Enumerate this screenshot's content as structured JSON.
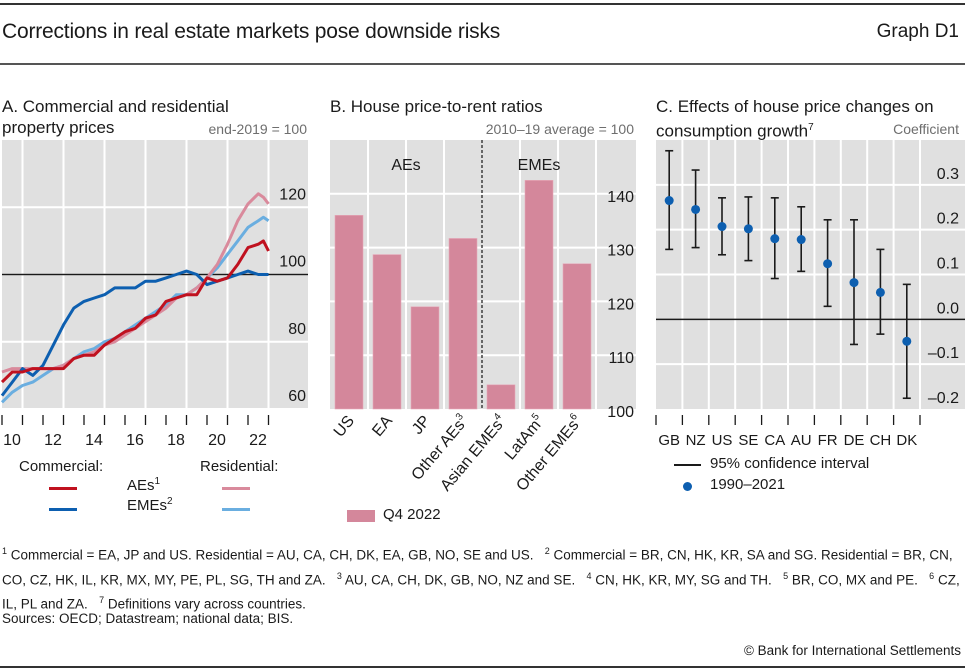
{
  "header": {
    "title": "Corrections in real estate markets pose downside risks",
    "graph_id": "Graph D1"
  },
  "colors": {
    "commercial_aes": "#c0111f",
    "commercial_emes": "#0d5fb0",
    "residential_aes": "#d98a9c",
    "residential_emes": "#6aaee0",
    "bar": "#d4879b",
    "dot": "#0d5fb0",
    "plot_bg": "#e0e0e0"
  },
  "panels": {
    "a": {
      "title_line1": "A. Commercial and residential",
      "title_line2": "property prices",
      "unit": "end-2019 = 100"
    },
    "b": {
      "title_line1": "B. House price-to-rent ratios",
      "unit": "2010–19 average = 100"
    },
    "c": {
      "title_line1": "C. Effects of house price changes on",
      "title_line2": "consumption growth",
      "title_sup": "7",
      "unit": "Coefficient"
    }
  },
  "legend_a": {
    "commercial": "Commercial:",
    "residential": "Residential:",
    "aes": "AEs",
    "aes_sup": "1",
    "emes": "EMEs",
    "emes_sup": "2"
  },
  "legend_b": {
    "q4": "Q4 2022"
  },
  "legend_c": {
    "ci": "95% confidence interval",
    "point": "1990–2021"
  },
  "footnotes": {
    "n1": "Commercial = EA, JP and US. Residential = AU, CA, CH, DK, EA, GB, NO, SE and US.",
    "n2": "Commercial = BR, CN, HK, KR, SA and SG. Residential = BR, CN, CO, CZ, HK, IL, KR, MX, MY, PE, PL, SG, TH and ZA.",
    "n3": "AU, CA, CH, DK, GB, NO, NZ and SE.",
    "n4": "CN, HK, KR, MY, SG and TH.",
    "n5": "BR, CO, MX and PE.",
    "n6": "CZ, IL, PL and ZA.",
    "n7": "Definitions vary across countries."
  },
  "sources": "Sources: OECD; Datastream; national data; BIS.",
  "copyright": "© Bank for International Settlements",
  "chart_data": [
    {
      "type": "line",
      "title": "A. Commercial and residential property prices",
      "ylabel": "end-2019 = 100",
      "ylim": [
        60,
        140
      ],
      "yticks": [
        60,
        80,
        100,
        120
      ],
      "xlim": [
        2010,
        2024
      ],
      "xtick_labels": [
        "10",
        "12",
        "14",
        "16",
        "18",
        "20",
        "22"
      ],
      "reference_line": 100,
      "x": [
        2010.0,
        2010.5,
        2011.0,
        2011.5,
        2012.0,
        2012.5,
        2013.0,
        2013.5,
        2014.0,
        2014.5,
        2015.0,
        2015.5,
        2016.0,
        2016.5,
        2017.0,
        2017.5,
        2018.0,
        2018.5,
        2019.0,
        2019.5,
        2020.0,
        2020.5,
        2021.0,
        2021.5,
        2022.0,
        2022.5,
        2022.75,
        2023.0
      ],
      "series": [
        {
          "name": "Commercial AEs",
          "values": [
            68,
            71,
            71,
            72,
            72,
            72,
            72,
            75,
            76,
            76,
            79,
            81,
            83,
            84,
            87,
            88,
            92,
            93,
            94,
            94,
            99,
            98,
            99,
            103,
            108,
            109,
            110,
            107
          ]
        },
        {
          "name": "Commercial EMEs",
          "values": [
            64,
            68,
            72,
            70,
            73,
            79,
            85,
            90,
            92,
            93,
            94,
            96,
            96,
            96,
            98,
            98,
            99,
            100,
            101,
            100,
            97,
            98,
            99,
            100,
            101,
            100,
            100,
            100
          ]
        },
        {
          "name": "Residential AEs",
          "values": [
            71,
            72,
            72,
            72,
            72,
            72,
            73,
            75,
            76,
            77,
            79,
            80,
            82,
            84,
            86,
            88,
            90,
            93,
            94,
            96,
            99,
            103,
            109,
            116,
            121,
            124,
            123,
            121
          ]
        },
        {
          "name": "Residential EMEs",
          "values": [
            62,
            65,
            67,
            68,
            70,
            72,
            73,
            75,
            77,
            78,
            80,
            81,
            83,
            85,
            87,
            89,
            91,
            94,
            94,
            96,
            99,
            102,
            106,
            110,
            114,
            116,
            117,
            116
          ]
        }
      ],
      "legend": [
        "Commercial: AEs",
        "Commercial: EMEs",
        "Residential: AEs",
        "Residential: EMEs"
      ]
    },
    {
      "type": "bar",
      "title": "B. House price-to-rent ratios",
      "ylabel": "2010–19 average = 100",
      "ylim": [
        100,
        150
      ],
      "yticks": [
        100,
        110,
        120,
        130,
        140
      ],
      "categories": [
        "US",
        "EA",
        "JP",
        "Other AEs",
        "Asian EMEs",
        "LatAm",
        "Other EMEs"
      ],
      "category_sups": [
        "",
        "",
        "",
        "3",
        "4",
        "5",
        "6"
      ],
      "groups": [
        {
          "label": "AEs",
          "count": 4
        },
        {
          "label": "EMEs",
          "count": 3
        }
      ],
      "series": [
        {
          "name": "Q4 2022",
          "values": [
            136,
            128.7,
            119,
            131.7,
            104.5,
            142.5,
            127
          ]
        }
      ]
    },
    {
      "type": "scatter",
      "title": "C. Effects of house price changes on consumption growth",
      "ylabel": "Coefficient",
      "ylim": [
        -0.2,
        0.4
      ],
      "yticks": [
        -0.2,
        -0.1,
        0.0,
        0.1,
        0.2,
        0.3
      ],
      "ytick_labels": [
        "–0.2",
        "–0.1",
        "0.0",
        "0.1",
        "0.2",
        "0.3"
      ],
      "categories": [
        "GB",
        "NZ",
        "US",
        "SE",
        "CA",
        "AU",
        "FR",
        "DE",
        "CH",
        "DK"
      ],
      "series": [
        {
          "name": "1990–2021",
          "values": [
            0.265,
            0.245,
            0.207,
            0.202,
            0.18,
            0.178,
            0.124,
            0.082,
            0.06,
            -0.049
          ]
        },
        {
          "name": "95% confidence interval upper",
          "values": [
            0.376,
            0.333,
            0.271,
            0.273,
            0.271,
            0.251,
            0.222,
            0.222,
            0.156,
            0.078
          ]
        },
        {
          "name": "95% confidence interval lower",
          "values": [
            0.156,
            0.16,
            0.144,
            0.131,
            0.091,
            0.107,
            0.029,
            -0.056,
            -0.033,
            -0.176
          ]
        }
      ],
      "legend": [
        "95% confidence interval",
        "1990–2021"
      ]
    }
  ]
}
